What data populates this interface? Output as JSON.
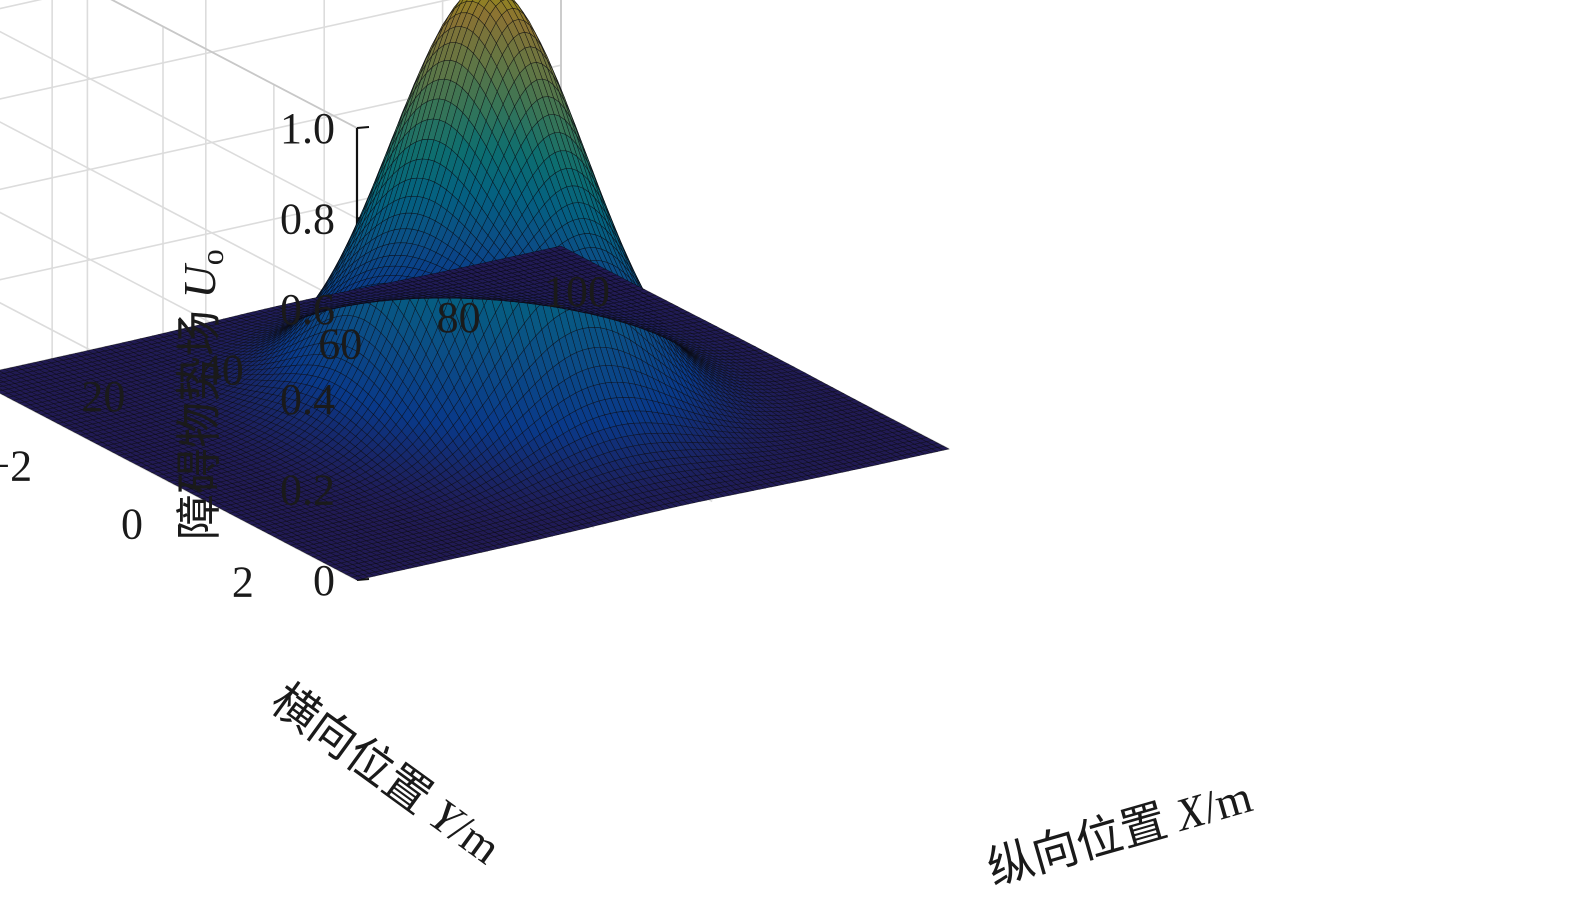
{
  "chart_data": {
    "type": "surface",
    "title": "",
    "zlabel": {
      "text": "障碍物势场 ",
      "var": "U",
      "sub": "o"
    },
    "xlabel": {
      "text": "纵向位置 ",
      "var": "X",
      "unit": "/m"
    },
    "ylabel": {
      "text": "横向位置 ",
      "var": "Y",
      "unit": "/m"
    },
    "xlim": [
      0,
      100
    ],
    "ylim": [
      -3.5,
      3.5
    ],
    "zlim": [
      0,
      1.0
    ],
    "xticks": [
      0,
      20,
      40,
      60,
      80,
      100
    ],
    "xtick_labels": [
      "0",
      "20",
      "40",
      "60",
      "80",
      "100"
    ],
    "yticks": [
      -2,
      0,
      2
    ],
    "ytick_labels": [
      "−2",
      "0",
      "2"
    ],
    "zticks": [
      0,
      0.2,
      0.4,
      0.6,
      0.8,
      1.0
    ],
    "ztick_labels": [
      "0",
      "0.2",
      "0.4",
      "0.6",
      "0.8",
      "1.0"
    ],
    "grid": true,
    "colormap": "parula",
    "function": {
      "form": "peak * exp(-((x - x0)^2 / (2*sx^2) + (y - y0)^2 / (2*sy^2)))",
      "peak": 0.93,
      "x0": 55,
      "y0": 0,
      "sx": 13,
      "sy": 1.1
    },
    "samples": [
      {
        "x": 55,
        "y": 0,
        "u": 0.93
      },
      {
        "x": 40,
        "y": 0,
        "u": 0.48
      },
      {
        "x": 70,
        "y": 0,
        "u": 0.48
      },
      {
        "x": 55,
        "y": -2,
        "u": 0.18
      },
      {
        "x": 55,
        "y": 2,
        "u": 0.18
      },
      {
        "x": 20,
        "y": 0,
        "u": 0.03
      },
      {
        "x": 90,
        "y": 0,
        "u": 0.03
      }
    ]
  }
}
